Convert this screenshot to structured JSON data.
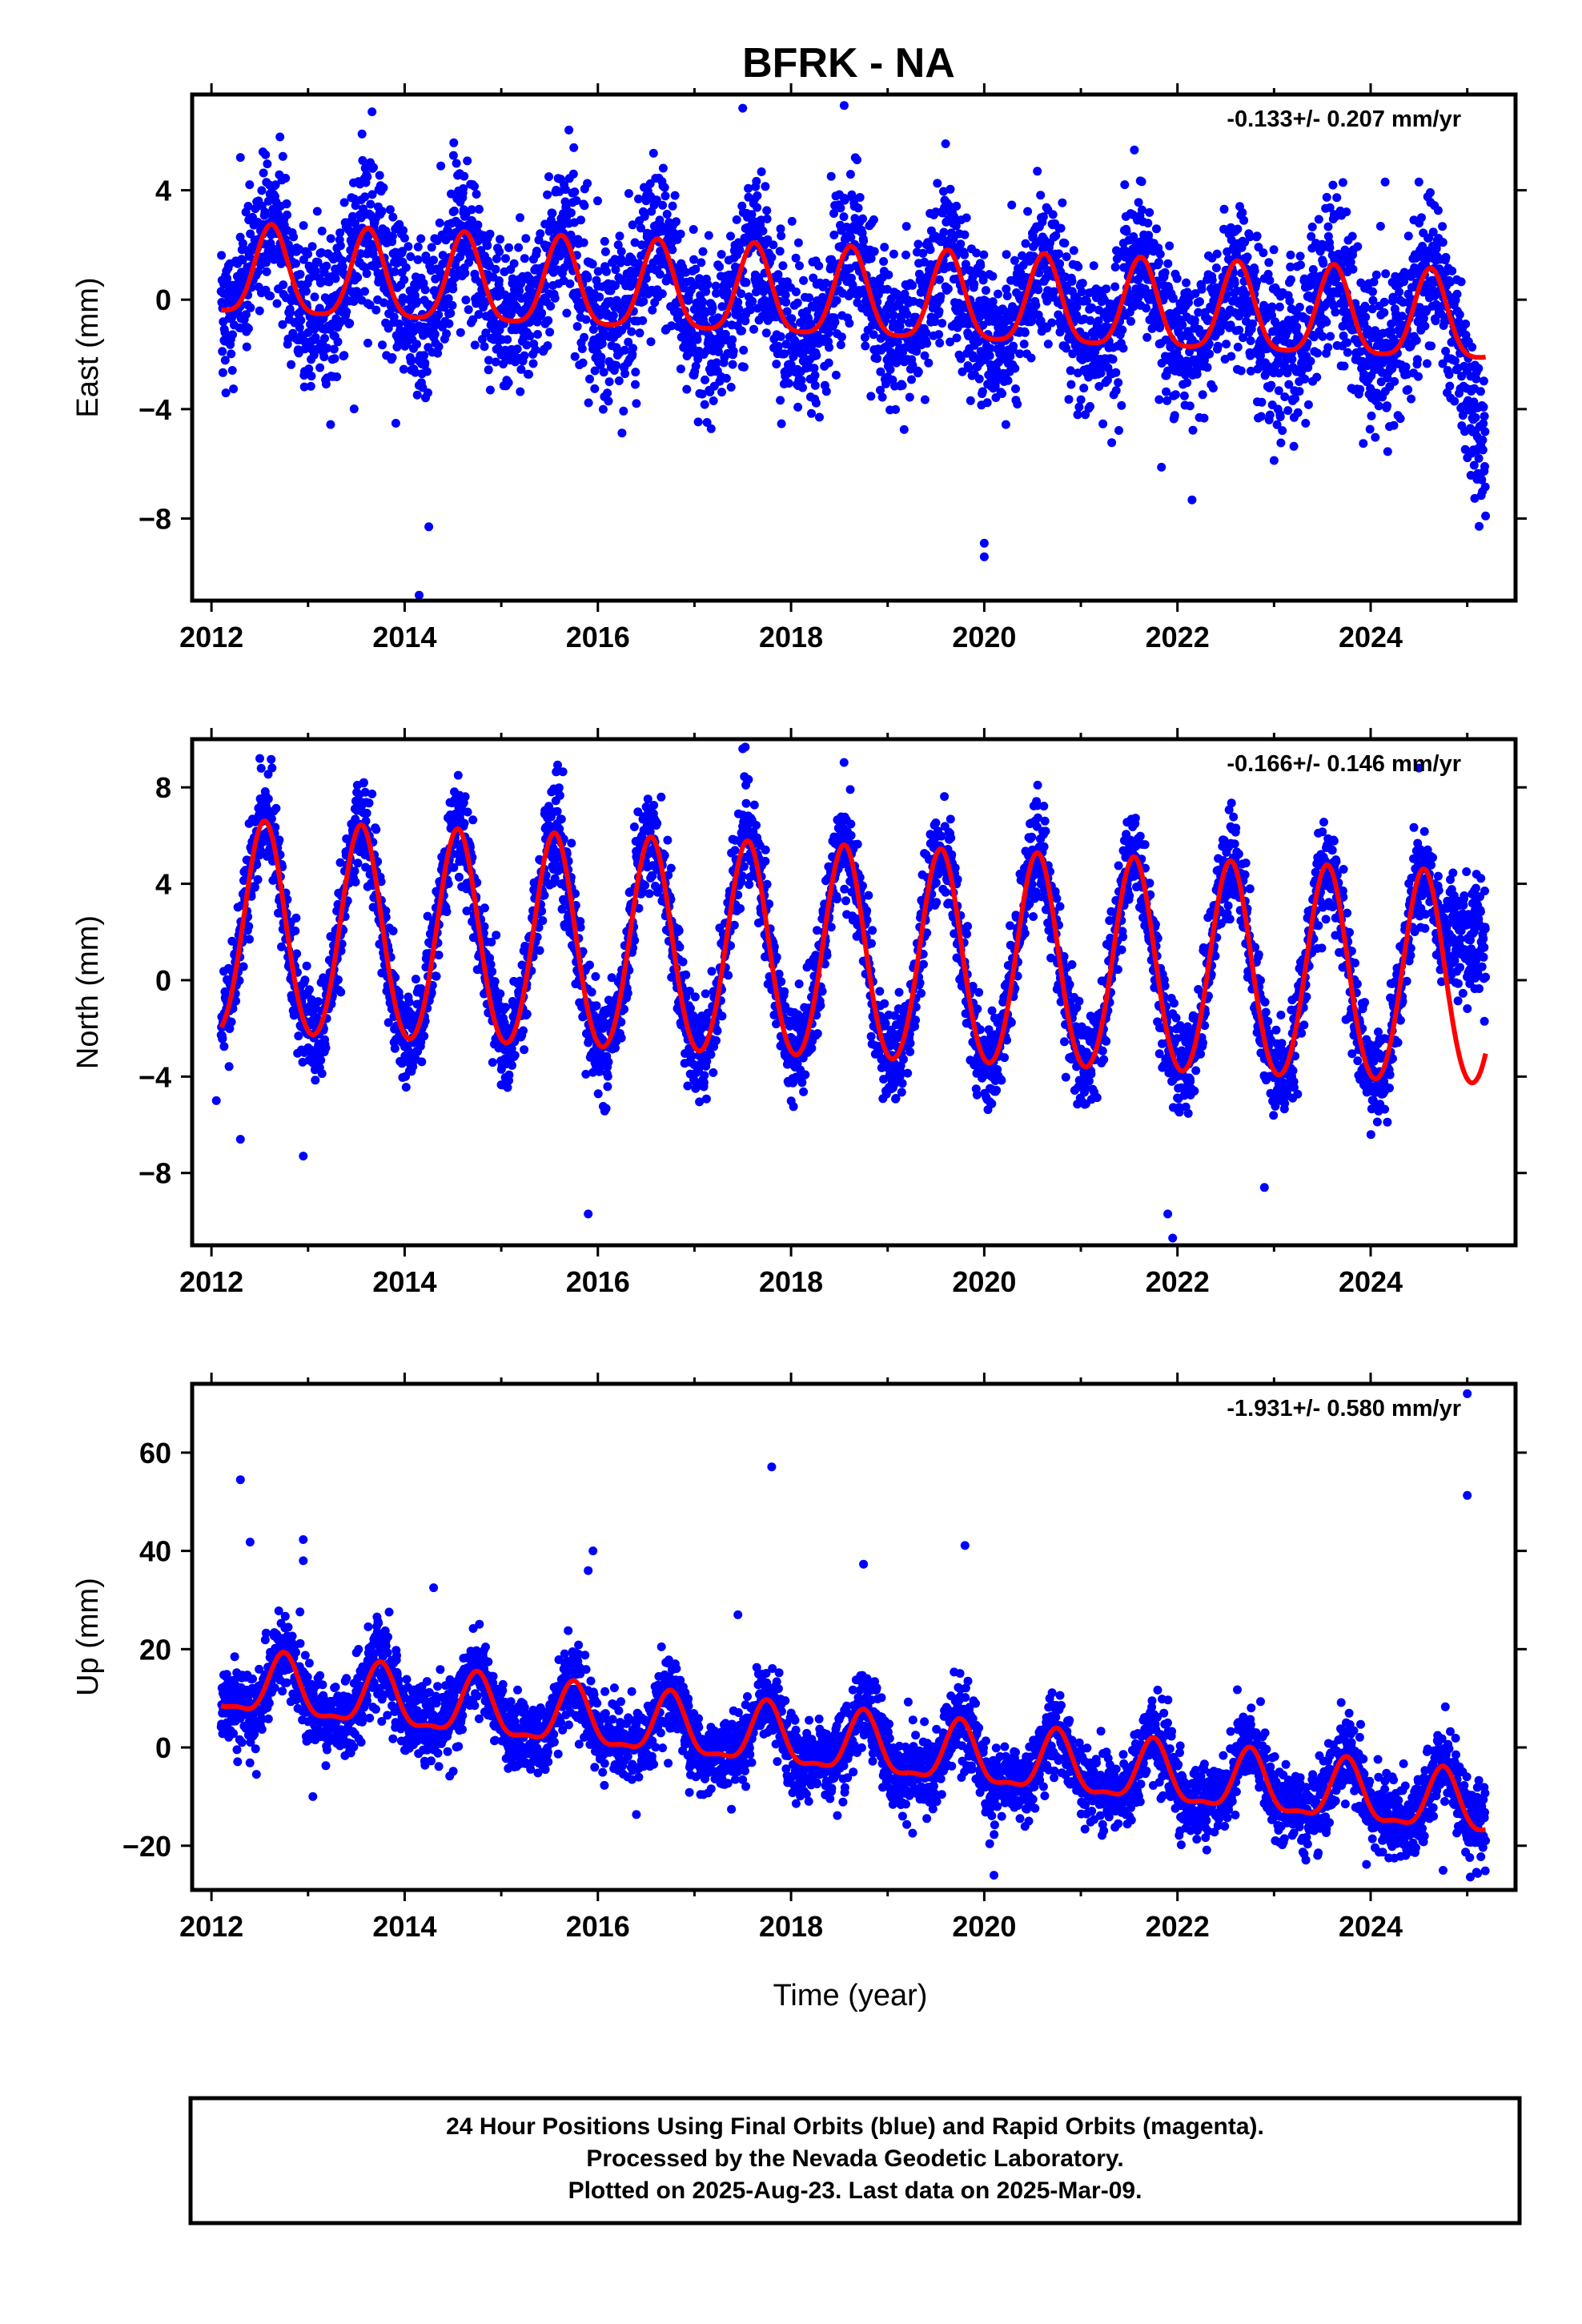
{
  "title": "BFRK - NA",
  "xlabel": "Time (year)",
  "footer_lines": [
    "24 Hour Positions Using Final Orbits (blue) and Rapid Orbits (magenta).",
    "Processed by the Nevada Geodetic Laboratory.",
    "Plotted on 2025-Aug-23. Last data on 2025-Mar-09."
  ],
  "colors": {
    "final_orbits": "#0000ff",
    "fit": "#ff0000",
    "frame": "#000000"
  },
  "chart_data": [
    {
      "type": "scatter",
      "ylabel": "East (mm)",
      "rate_label": "-0.133+/- 0.207 mm/yr",
      "xlim": [
        2011.8,
        2025.5
      ],
      "ylim": [
        -11,
        7.5
      ],
      "x_ticks": [
        2012,
        2014,
        2016,
        2018,
        2020,
        2022,
        2024
      ],
      "y_ticks": [
        -8,
        -4,
        0,
        4
      ],
      "series": [
        {
          "role": "daily-positions",
          "color": "#0000ff",
          "x_range": [
            2012.1,
            2025.19
          ],
          "n_points": 4300,
          "trend_mm_per_yr": -0.133,
          "annual_amplitude_mm": 1.6,
          "annual_peak_phase_yr": 0.62,
          "scatter_sigma_mm": 1.4,
          "outliers": [
            [
              2017.5,
              7.0
            ],
            [
              2018.55,
              7.1
            ],
            [
              2014.15,
              -10.8
            ],
            [
              2014.25,
              -8.3
            ],
            [
              2020.0,
              -9.4
            ],
            [
              2020.0,
              -8.9
            ],
            [
              2012.3,
              5.2
            ],
            [
              2015.7,
              6.2
            ],
            [
              2019.6,
              5.7
            ],
            [
              2024.15,
              4.3
            ],
            [
              2024.5,
              4.3
            ]
          ]
        },
        {
          "role": "model-fit",
          "color": "#ff0000",
          "model": {
            "x0": 2018.65,
            "offset_mm": 0,
            "trend_mm_per_yr": -0.133,
            "annual_amplitude_mm": 1.6,
            "annual_peak_phase_yr": 0.62,
            "semiannual_amplitude_mm": 0.35
          }
        }
      ]
    },
    {
      "type": "scatter",
      "ylabel": "North (mm)",
      "rate_label": "-0.166+/- 0.146 mm/yr",
      "xlim": [
        2011.8,
        2025.5
      ],
      "ylim": [
        -11,
        10
      ],
      "x_ticks": [
        2012,
        2014,
        2016,
        2018,
        2020,
        2022,
        2024
      ],
      "y_ticks": [
        -8,
        -4,
        0,
        4,
        8
      ],
      "series": [
        {
          "role": "daily-positions",
          "color": "#0000ff",
          "x_range": [
            2012.1,
            2025.19
          ],
          "n_points": 4300,
          "trend_mm_per_yr": -0.166,
          "annual_amplitude_mm": 4.4,
          "annual_peak_phase_yr": 0.55,
          "scatter_sigma_mm": 1.0,
          "outliers": [
            [
              2012.5,
              9.2
            ],
            [
              2017.5,
              9.6
            ],
            [
              2024.5,
              8.8
            ],
            [
              2015.9,
              -9.7
            ],
            [
              2021.9,
              -9.7
            ],
            [
              2021.95,
              -10.7
            ],
            [
              2012.3,
              -6.6
            ],
            [
              2022.9,
              -8.6
            ],
            [
              2012.05,
              -5.0
            ],
            [
              2012.95,
              -7.3
            ]
          ]
        },
        {
          "role": "model-fit",
          "color": "#ff0000",
          "model": {
            "x0": 2018.65,
            "offset_mm": 0.9,
            "trend_mm_per_yr": -0.166,
            "annual_amplitude_mm": 4.4,
            "annual_peak_phase_yr": 0.55,
            "semiannual_amplitude_mm": 0.3
          }
        }
      ]
    },
    {
      "type": "scatter",
      "ylabel": "Up (mm)",
      "rate_label": "-1.931+/- 0.580 mm/yr",
      "xlim": [
        2011.8,
        2025.5
      ],
      "ylim": [
        -29,
        74
      ],
      "x_ticks": [
        2012,
        2014,
        2016,
        2018,
        2020,
        2022,
        2024
      ],
      "y_ticks": [
        -20,
        0,
        20,
        40,
        60
      ],
      "series": [
        {
          "role": "daily-positions",
          "color": "#0000ff",
          "x_range": [
            2012.1,
            2025.19
          ],
          "n_points": 4300,
          "trend_mm_per_yr": -1.931,
          "annual_amplitude_mm": 6.0,
          "annual_peak_phase_yr": 0.75,
          "scatter_sigma_mm": 4.0,
          "outliers": [
            [
              2012.3,
              54.5
            ],
            [
              2012.4,
              41.8
            ],
            [
              2017.8,
              57.1
            ],
            [
              2018.75,
              37.3
            ],
            [
              2019.8,
              41.1
            ],
            [
              2015.95,
              40.0
            ],
            [
              2015.9,
              36.0
            ],
            [
              2014.3,
              32.5
            ],
            [
              2017.45,
              27.0
            ],
            [
              2025.0,
              72.0
            ],
            [
              2025.0,
              51.3
            ],
            [
              2012.95,
              42.3
            ],
            [
              2012.95,
              38.0
            ],
            [
              2013.05,
              -10.0
            ],
            [
              2020.1,
              -26.0
            ],
            [
              2024.75,
              -25.0
            ]
          ]
        },
        {
          "role": "model-fit",
          "color": "#ff0000",
          "model": {
            "x0": 2018.65,
            "offset_mm": 0,
            "trend_mm_per_yr": -1.931,
            "annual_amplitude_mm": 6.0,
            "annual_peak_phase_yr": 0.75,
            "semiannual_amplitude_mm": 2.0
          }
        }
      ]
    }
  ]
}
